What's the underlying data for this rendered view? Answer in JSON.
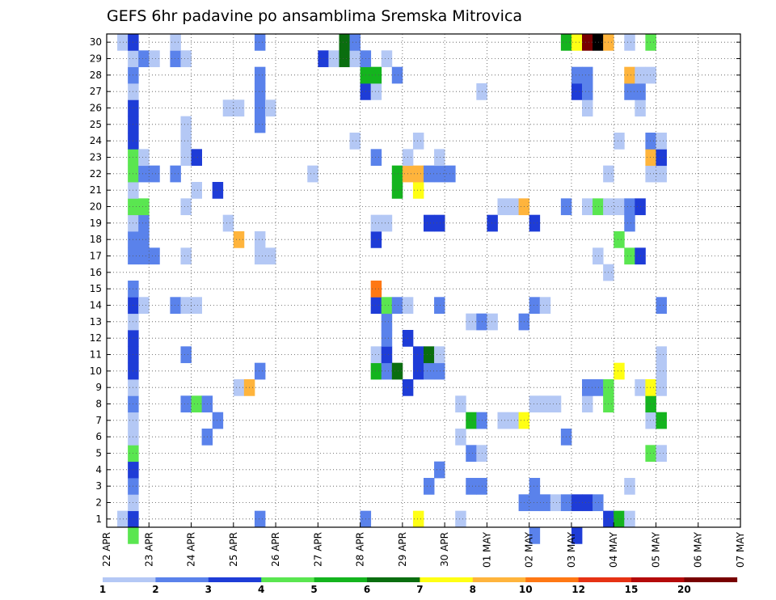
{
  "chart_data": {
    "type": "heatmap",
    "title": "GEFS 6hr padavine po ansamblima Sremska Mitrovica",
    "xlabel": "",
    "ylabel": "",
    "x_tick_labels": [
      "22 APR",
      "23 APR",
      "24 APR",
      "25 APR",
      "26 APR",
      "27 APR",
      "28 APR",
      "29 APR",
      "30 APR",
      "01 MAY",
      "02 MAY",
      "03 MAY",
      "04 MAY",
      "05 MAY",
      "06 MAY",
      "07 MAY"
    ],
    "y_tick_labels": [
      "1",
      "2",
      "3",
      "4",
      "5",
      "6",
      "7",
      "8",
      "9",
      "10",
      "11",
      "12",
      "13",
      "14",
      "15",
      "16",
      "17",
      "18",
      "19",
      "20",
      "21",
      "22",
      "23",
      "24",
      "25",
      "26",
      "27",
      "28",
      "29",
      "30"
    ],
    "time_step_hours": 6,
    "ensemble_members": 30,
    "grid": true,
    "colorbar": {
      "boundaries": [
        "1",
        "2",
        "3",
        "4",
        "5",
        "6",
        "7",
        "8",
        "10",
        "12",
        "15",
        "20"
      ],
      "colors": [
        "#b4c8f5",
        "#5a82eb",
        "#1e3cd7",
        "#5ae650",
        "#14b41e",
        "#0a6e0f",
        "#ffff14",
        "#ffb43c",
        "#ff7814",
        "#e63214",
        "#b40a0a",
        "#780000"
      ]
    },
    "cells": [
      [
        1,
        1,
        1
      ],
      [
        1,
        30,
        1
      ],
      [
        2,
        0,
        4
      ],
      [
        2,
        1,
        3
      ],
      [
        2,
        2,
        1
      ],
      [
        2,
        3,
        2
      ],
      [
        2,
        4,
        3
      ],
      [
        2,
        5,
        4
      ],
      [
        2,
        6,
        1
      ],
      [
        2,
        7,
        1
      ],
      [
        2,
        8,
        2
      ],
      [
        2,
        9,
        1
      ],
      [
        2,
        10,
        3
      ],
      [
        2,
        11,
        3
      ],
      [
        2,
        12,
        3
      ],
      [
        2,
        13,
        1
      ],
      [
        2,
        14,
        3
      ],
      [
        2,
        15,
        2
      ],
      [
        2,
        17,
        2
      ],
      [
        2,
        18,
        2
      ],
      [
        2,
        19,
        1
      ],
      [
        2,
        20,
        4
      ],
      [
        2,
        21,
        1
      ],
      [
        2,
        22,
        4
      ],
      [
        2,
        23,
        4
      ],
      [
        2,
        24,
        3
      ],
      [
        2,
        25,
        3
      ],
      [
        2,
        26,
        3
      ],
      [
        2,
        27,
        1
      ],
      [
        2,
        28,
        2
      ],
      [
        2,
        29,
        1
      ],
      [
        2,
        30,
        3
      ],
      [
        3,
        14,
        1
      ],
      [
        3,
        17,
        2
      ],
      [
        3,
        18,
        2
      ],
      [
        3,
        19,
        2
      ],
      [
        3,
        20,
        4
      ],
      [
        3,
        22,
        2
      ],
      [
        3,
        23,
        1
      ],
      [
        3,
        29,
        2
      ],
      [
        4,
        17,
        2
      ],
      [
        4,
        22,
        2
      ],
      [
        4,
        29,
        1
      ],
      [
        6,
        14,
        2
      ],
      [
        6,
        22,
        2
      ],
      [
        6,
        29,
        2
      ],
      [
        6,
        30,
        1
      ],
      [
        7,
        8,
        2
      ],
      [
        7,
        11,
        2
      ],
      [
        7,
        14,
        1
      ],
      [
        7,
        17,
        1
      ],
      [
        7,
        20,
        1
      ],
      [
        7,
        23,
        1
      ],
      [
        7,
        24,
        1
      ],
      [
        7,
        25,
        1
      ],
      [
        7,
        29,
        1
      ],
      [
        8,
        8,
        4
      ],
      [
        8,
        14,
        1
      ],
      [
        8,
        21,
        1
      ],
      [
        8,
        23,
        3
      ],
      [
        9,
        6,
        2
      ],
      [
        9,
        8,
        2
      ],
      [
        10,
        7,
        2
      ],
      [
        10,
        21,
        3
      ],
      [
        11,
        19,
        1
      ],
      [
        11,
        26,
        1
      ],
      [
        12,
        9,
        1
      ],
      [
        12,
        18,
        8
      ],
      [
        12,
        26,
        1
      ],
      [
        13,
        9,
        8
      ],
      [
        14,
        1,
        2
      ],
      [
        14,
        10,
        2
      ],
      [
        14,
        17,
        1
      ],
      [
        14,
        18,
        1
      ],
      [
        14,
        25,
        2
      ],
      [
        14,
        26,
        2
      ],
      [
        14,
        27,
        2
      ],
      [
        14,
        28,
        2
      ],
      [
        14,
        30,
        2
      ],
      [
        15,
        17,
        1
      ],
      [
        15,
        26,
        1
      ],
      [
        19,
        22,
        1
      ],
      [
        20,
        29,
        3
      ],
      [
        21,
        29,
        1
      ],
      [
        22,
        29,
        6
      ],
      [
        22,
        30,
        6
      ],
      [
        23,
        24,
        1
      ],
      [
        23,
        29,
        1
      ],
      [
        23,
        30,
        2
      ],
      [
        24,
        1,
        2
      ],
      [
        24,
        27,
        3
      ],
      [
        24,
        28,
        5
      ],
      [
        24,
        29,
        2
      ],
      [
        25,
        10,
        5
      ],
      [
        25,
        11,
        1
      ],
      [
        25,
        14,
        3
      ],
      [
        25,
        15,
        9
      ],
      [
        25,
        18,
        3
      ],
      [
        25,
        19,
        1
      ],
      [
        25,
        23,
        2
      ],
      [
        25,
        27,
        1
      ],
      [
        25,
        28,
        5
      ],
      [
        26,
        10,
        2
      ],
      [
        26,
        11,
        3
      ],
      [
        26,
        12,
        2
      ],
      [
        26,
        13,
        2
      ],
      [
        26,
        14,
        4
      ],
      [
        26,
        19,
        1
      ],
      [
        26,
        29,
        1
      ],
      [
        27,
        10,
        6
      ],
      [
        27,
        14,
        2
      ],
      [
        27,
        21,
        5
      ],
      [
        27,
        22,
        5
      ],
      [
        27,
        28,
        2
      ],
      [
        28,
        9,
        3
      ],
      [
        28,
        12,
        3
      ],
      [
        28,
        14,
        1
      ],
      [
        28,
        22,
        8
      ],
      [
        28,
        23,
        1
      ],
      [
        29,
        1,
        7
      ],
      [
        29,
        10,
        3
      ],
      [
        29,
        11,
        3
      ],
      [
        29,
        21,
        7
      ],
      [
        29,
        22,
        8
      ],
      [
        29,
        24,
        1
      ],
      [
        30,
        3,
        2
      ],
      [
        30,
        10,
        2
      ],
      [
        30,
        11,
        6
      ],
      [
        30,
        19,
        3
      ],
      [
        30,
        22,
        2
      ],
      [
        31,
        4,
        2
      ],
      [
        31,
        10,
        2
      ],
      [
        31,
        11,
        1
      ],
      [
        31,
        14,
        2
      ],
      [
        31,
        19,
        3
      ],
      [
        31,
        22,
        2
      ],
      [
        31,
        23,
        1
      ],
      [
        32,
        22,
        2
      ],
      [
        33,
        1,
        1
      ],
      [
        33,
        6,
        1
      ],
      [
        33,
        8,
        1
      ],
      [
        34,
        3,
        2
      ],
      [
        34,
        5,
        2
      ],
      [
        34,
        7,
        5
      ],
      [
        34,
        13,
        1
      ],
      [
        35,
        3,
        2
      ],
      [
        35,
        5,
        1
      ],
      [
        35,
        7,
        2
      ],
      [
        35,
        13,
        2
      ],
      [
        35,
        27,
        1
      ],
      [
        36,
        13,
        1
      ],
      [
        36,
        19,
        3
      ],
      [
        37,
        7,
        1
      ],
      [
        37,
        20,
        1
      ],
      [
        38,
        7,
        1
      ],
      [
        38,
        20,
        1
      ],
      [
        39,
        2,
        2
      ],
      [
        39,
        7,
        7
      ],
      [
        39,
        13,
        2
      ],
      [
        39,
        20,
        8
      ],
      [
        40,
        0,
        2
      ],
      [
        40,
        2,
        2
      ],
      [
        40,
        3,
        2
      ],
      [
        40,
        8,
        1
      ],
      [
        40,
        14,
        2
      ],
      [
        40,
        19,
        3
      ],
      [
        41,
        2,
        2
      ],
      [
        41,
        8,
        1
      ],
      [
        41,
        14,
        1
      ],
      [
        42,
        2,
        1
      ],
      [
        42,
        8,
        1
      ],
      [
        43,
        2,
        2
      ],
      [
        43,
        6,
        2
      ],
      [
        43,
        20,
        2
      ],
      [
        43,
        30,
        5
      ],
      [
        44,
        0,
        3
      ],
      [
        44,
        2,
        3
      ],
      [
        44,
        27,
        3
      ],
      [
        44,
        28,
        2
      ],
      [
        44,
        30,
        7
      ],
      [
        45,
        2,
        3
      ],
      [
        45,
        8,
        1
      ],
      [
        45,
        9,
        2
      ],
      [
        45,
        20,
        1
      ],
      [
        45,
        26,
        1
      ],
      [
        45,
        27,
        2
      ],
      [
        45,
        28,
        2
      ],
      [
        45,
        30,
        12
      ],
      [
        46,
        2,
        2
      ],
      [
        46,
        9,
        2
      ],
      [
        46,
        17,
        1
      ],
      [
        46,
        20,
        4
      ],
      [
        46,
        30,
        15
      ],
      [
        47,
        1,
        3
      ],
      [
        47,
        8,
        4
      ],
      [
        47,
        9,
        4
      ],
      [
        47,
        16,
        1
      ],
      [
        47,
        20,
        1
      ],
      [
        47,
        22,
        1
      ],
      [
        47,
        30,
        8
      ],
      [
        48,
        1,
        5
      ],
      [
        48,
        10,
        7
      ],
      [
        48,
        18,
        4
      ],
      [
        48,
        20,
        1
      ],
      [
        48,
        24,
        1
      ],
      [
        49,
        1,
        1
      ],
      [
        49,
        3,
        1
      ],
      [
        49,
        17,
        4
      ],
      [
        49,
        19,
        2
      ],
      [
        49,
        20,
        2
      ],
      [
        49,
        27,
        2
      ],
      [
        49,
        28,
        8
      ],
      [
        49,
        30,
        1
      ],
      [
        50,
        9,
        1
      ],
      [
        50,
        17,
        3
      ],
      [
        50,
        20,
        3
      ],
      [
        50,
        26,
        1
      ],
      [
        50,
        27,
        2
      ],
      [
        50,
        28,
        1
      ],
      [
        51,
        5,
        4
      ],
      [
        51,
        7,
        1
      ],
      [
        51,
        8,
        5
      ],
      [
        51,
        9,
        7
      ],
      [
        51,
        22,
        1
      ],
      [
        51,
        23,
        8
      ],
      [
        51,
        24,
        2
      ],
      [
        51,
        28,
        1
      ],
      [
        51,
        30,
        4
      ],
      [
        52,
        5,
        1
      ],
      [
        52,
        7,
        5
      ],
      [
        52,
        9,
        1
      ],
      [
        52,
        10,
        1
      ],
      [
        52,
        11,
        1
      ],
      [
        52,
        14,
        2
      ],
      [
        52,
        22,
        1
      ],
      [
        52,
        23,
        3
      ],
      [
        52,
        24,
        1
      ]
    ]
  }
}
